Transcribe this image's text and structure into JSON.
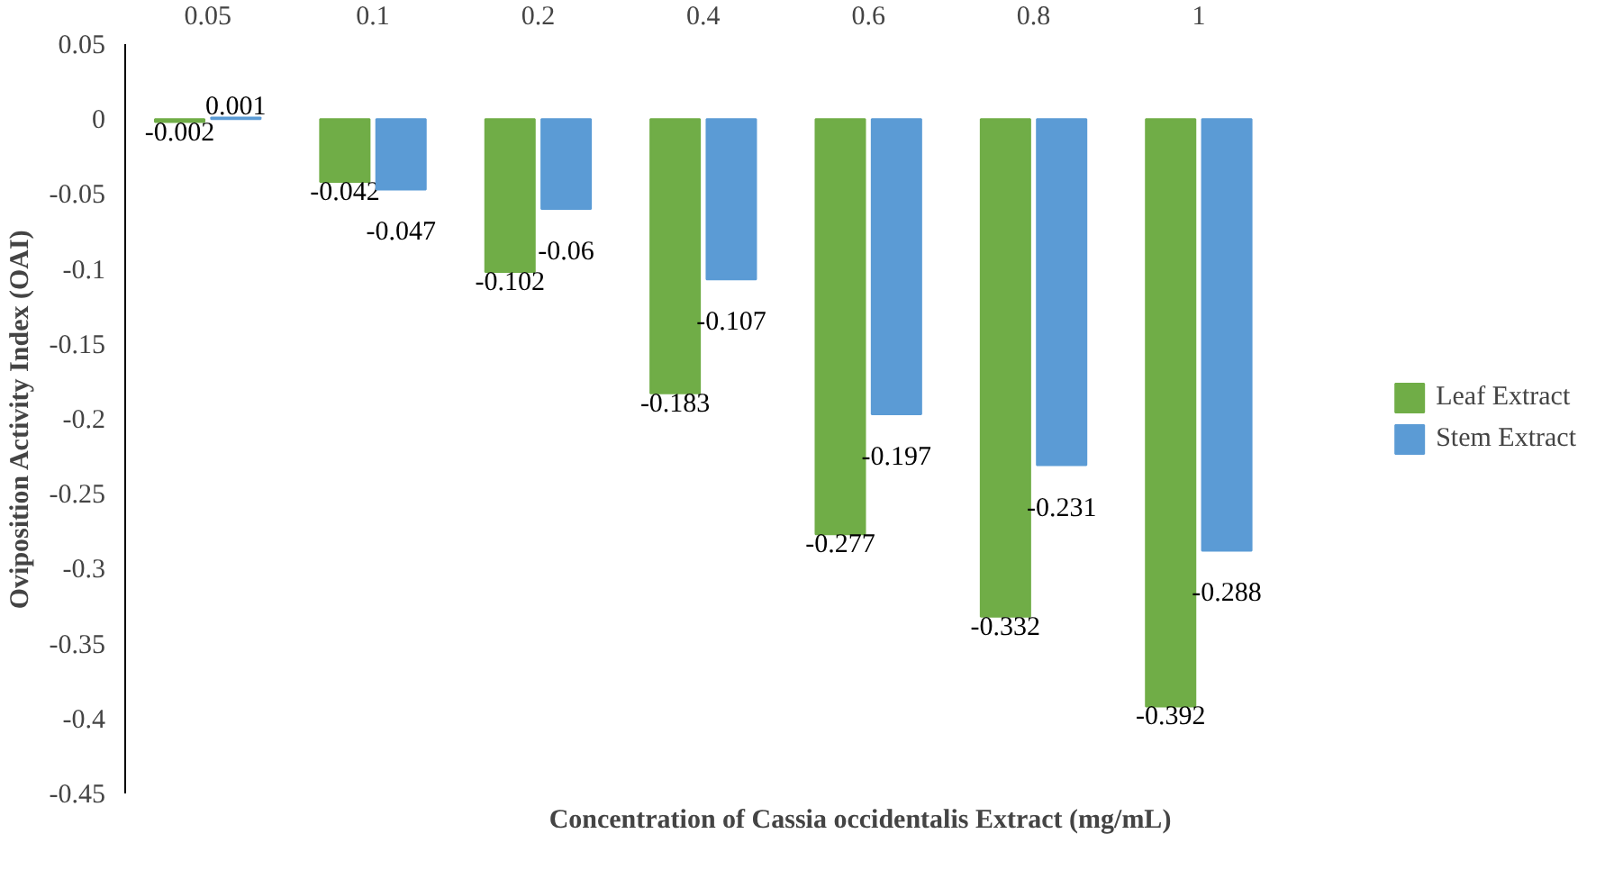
{
  "chart_data": {
    "type": "bar",
    "xlabel": "Concentration of Cassia occidentalis Extract (mg/mL)",
    "ylabel": "Oviposition Activity Index (OAI)",
    "categories": [
      "0.05",
      "0.1",
      "0.2",
      "0.4",
      "0.6",
      "0.8",
      "1"
    ],
    "series": [
      {
        "name": "Leaf Extract",
        "color": "#70ad47",
        "values": [
          -0.002,
          -0.042,
          -0.102,
          -0.183,
          -0.277,
          -0.332,
          -0.392
        ]
      },
      {
        "name": "Stem Extract",
        "color": "#5b9bd5",
        "values": [
          0.001,
          -0.047,
          -0.06,
          -0.107,
          -0.197,
          -0.231,
          -0.288
        ]
      }
    ],
    "ylim": [
      -0.45,
      0.05
    ],
    "yticks": [
      -0.45,
      -0.4,
      -0.35,
      -0.3,
      -0.25,
      -0.2,
      -0.15,
      -0.1,
      -0.05,
      0,
      0.05
    ],
    "grid": false,
    "legend": "right",
    "data_labels": true
  }
}
